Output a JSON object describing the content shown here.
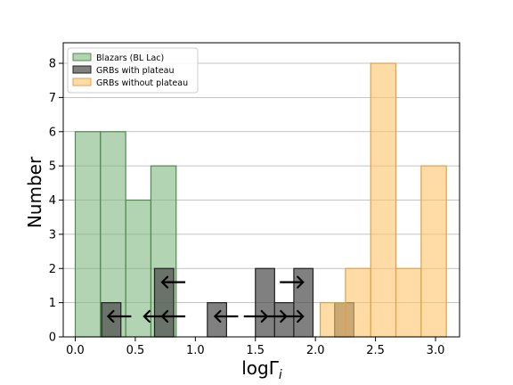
{
  "chart_data": {
    "type": "bar",
    "xlabel_base": "logΓ",
    "xlabel_sub": "i",
    "ylabel": "Number",
    "xlim": [
      -0.1,
      3.2
    ],
    "ylim": [
      0,
      8.6
    ],
    "xticks": [
      0.0,
      0.5,
      1.0,
      1.5,
      2.0,
      2.5,
      3.0
    ],
    "xtick_labels": [
      "0.0",
      "0.5",
      "1.0",
      "1.5",
      "2.0",
      "2.5",
      "3.0"
    ],
    "yticks": [
      0,
      1,
      2,
      3,
      4,
      5,
      6,
      7,
      8
    ],
    "ytick_labels": [
      "0",
      "1",
      "2",
      "3",
      "4",
      "5",
      "6",
      "7",
      "8"
    ],
    "grid": "horizontal",
    "legend_position": "top-left",
    "series": [
      {
        "name": "Blazars (BL Lac)",
        "color": "#7fb77e",
        "edge_color": "#4e8a4d",
        "opacity": 0.6,
        "bins": [
          {
            "x0": 0.0,
            "x1": 0.21,
            "count": 6
          },
          {
            "x0": 0.21,
            "x1": 0.42,
            "count": 6
          },
          {
            "x0": 0.42,
            "x1": 0.63,
            "count": 4
          },
          {
            "x0": 0.63,
            "x1": 0.84,
            "count": 5
          }
        ]
      },
      {
        "name": "GRBs with plateau",
        "color": "#4a4a4a",
        "edge_color": "#222222",
        "opacity": 0.7,
        "bins": [
          {
            "x0": 0.22,
            "x1": 0.38,
            "count": 1
          },
          {
            "x0": 0.66,
            "x1": 0.82,
            "count": 2
          },
          {
            "x0": 1.1,
            "x1": 1.26,
            "count": 1
          },
          {
            "x0": 1.5,
            "x1": 1.66,
            "count": 2
          },
          {
            "x0": 1.66,
            "x1": 1.82,
            "count": 1
          },
          {
            "x0": 1.82,
            "x1": 1.98,
            "count": 2
          },
          {
            "x0": 2.16,
            "x1": 2.32,
            "count": 1
          }
        ]
      },
      {
        "name": "GRBs without plateau",
        "color": "#ffc46b",
        "edge_color": "#e0a04a",
        "opacity": 0.6,
        "bins": [
          {
            "x0": 2.04,
            "x1": 2.25,
            "count": 1
          },
          {
            "x0": 2.25,
            "x1": 2.46,
            "count": 2
          },
          {
            "x0": 2.46,
            "x1": 2.67,
            "count": 8
          },
          {
            "x0": 2.67,
            "x1": 2.88,
            "count": 2
          },
          {
            "x0": 2.88,
            "x1": 3.09,
            "count": 5
          }
        ]
      }
    ],
    "limit_arrows": [
      {
        "x": 0.37,
        "y": 0.6,
        "direction": "left"
      },
      {
        "x": 0.67,
        "y": 0.6,
        "direction": "left"
      },
      {
        "x": 0.82,
        "y": 0.6,
        "direction": "left"
      },
      {
        "x": 0.82,
        "y": 1.6,
        "direction": "left"
      },
      {
        "x": 1.26,
        "y": 0.6,
        "direction": "left"
      },
      {
        "x": 1.5,
        "y": 0.6,
        "direction": "right"
      },
      {
        "x": 1.66,
        "y": 0.6,
        "direction": "right"
      },
      {
        "x": 1.8,
        "y": 0.6,
        "direction": "right"
      },
      {
        "x": 1.8,
        "y": 1.6,
        "direction": "right"
      }
    ]
  }
}
